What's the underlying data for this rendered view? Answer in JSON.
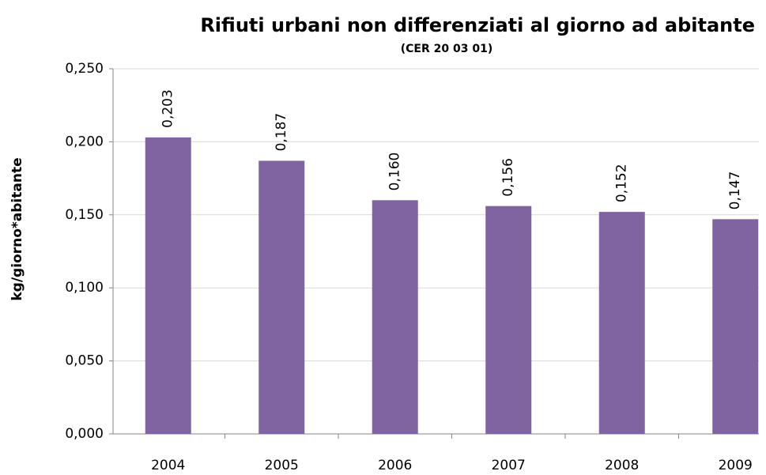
{
  "chart_data": {
    "type": "bar",
    "title": "Rifiuti urbani non differenziati al giorno ad abitante",
    "subtitle": "(CER 20 03 01)",
    "y_label": "kg/giorno*abitante",
    "categories": [
      "2004",
      "2005",
      "2006",
      "2007",
      "2008",
      "2009"
    ],
    "values": [
      0.203,
      0.187,
      0.16,
      0.156,
      0.152,
      0.147
    ],
    "value_labels": [
      "0,203",
      "0,187",
      "0,160",
      "0,156",
      "0,152",
      "0,147"
    ],
    "color": "#8064a2",
    "ylim": [
      0,
      0.25
    ],
    "yticks": [
      {
        "value": 0,
        "label": "0,000"
      },
      {
        "value": 0.05,
        "label": "0,050"
      },
      {
        "value": 0.1,
        "label": "0,100"
      },
      {
        "value": 0.15,
        "label": "0,150"
      },
      {
        "value": 0.2,
        "label": "0,200"
      },
      {
        "value": 0.25,
        "label": "0,250"
      }
    ],
    "grid": true
  }
}
